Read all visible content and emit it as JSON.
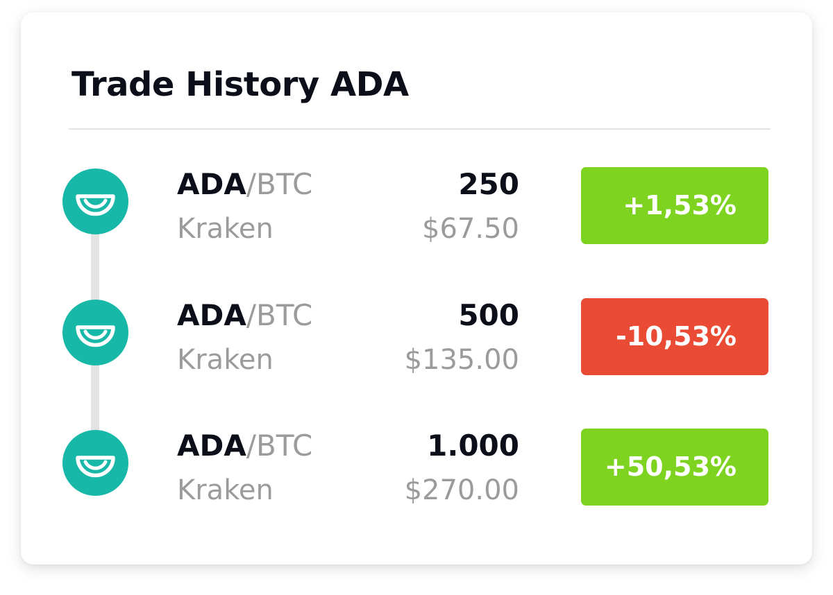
{
  "widget": {
    "title": "Trade History ADA"
  },
  "colors": {
    "coin": "#17b8a8",
    "positive": "#7ed321",
    "negative": "#e94b35",
    "text_dark": "#0c0f1a",
    "text_muted": "#9b9b9b",
    "timeline": "#e3e3e3"
  },
  "trades": [
    {
      "icon": "ada-coin-icon",
      "base": "ADA",
      "separator": "/",
      "quote": "BTC",
      "exchange": "Kraken",
      "amount": "250",
      "value": "$67.50",
      "change": "+1,53%",
      "direction": "positive"
    },
    {
      "icon": "ada-coin-icon",
      "base": "ADA",
      "separator": "/",
      "quote": "BTC",
      "exchange": "Kraken",
      "amount": "500",
      "value": "$135.00",
      "change": "-10,53%",
      "direction": "negative"
    },
    {
      "icon": "ada-coin-icon",
      "base": "ADA",
      "separator": "/",
      "quote": "BTC",
      "exchange": "Kraken",
      "amount": "1.000",
      "value": "$270.00",
      "change": "+50,53%",
      "direction": "positive"
    }
  ]
}
